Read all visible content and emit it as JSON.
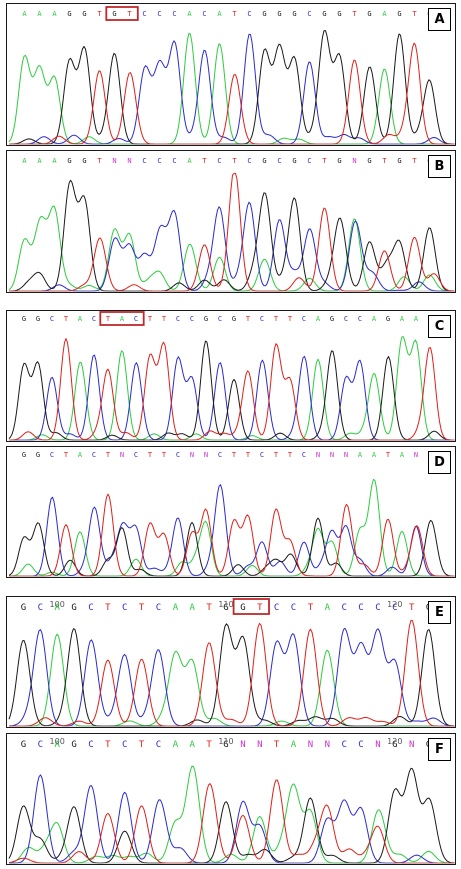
{
  "colors": {
    "A": "#2ecc40",
    "C": "#2b2bd0",
    "G": "#1a1a1a",
    "T": "#e0201a",
    "N": "#cc33cc",
    "highlight": "#c0282b"
  },
  "panels": [
    {
      "label": "A",
      "bases": "AAAGGTGTCCCACATCGGGCGGTGAGTG",
      "highlight": [
        6,
        7
      ],
      "positions": []
    },
    {
      "label": "B",
      "bases": "AAAGGTNNCCCATCTCGCGCTGNGTGTG",
      "highlight": null,
      "positions": []
    },
    {
      "label": "C",
      "bases": "GGCTACTACTTCCGCGTCTTCAGCCAGAAT",
      "highlight": [
        6,
        8
      ],
      "positions": []
    },
    {
      "label": "D",
      "bases": "GGCTACTNCTTCNNCTTCTTCNNNAATANG",
      "highlight": null,
      "positions": []
    },
    {
      "label": "E",
      "bases": "GCAGCTCTCAATGGTCCTACCCCTG",
      "highlight": [
        13,
        14
      ],
      "positions": [
        "100",
        "110",
        "120"
      ]
    },
    {
      "label": "F",
      "bases": "GCAGCTCTCAATGNNTANNCCNGNG",
      "highlight": null,
      "positions": [
        "100",
        "110",
        "120"
      ]
    }
  ]
}
